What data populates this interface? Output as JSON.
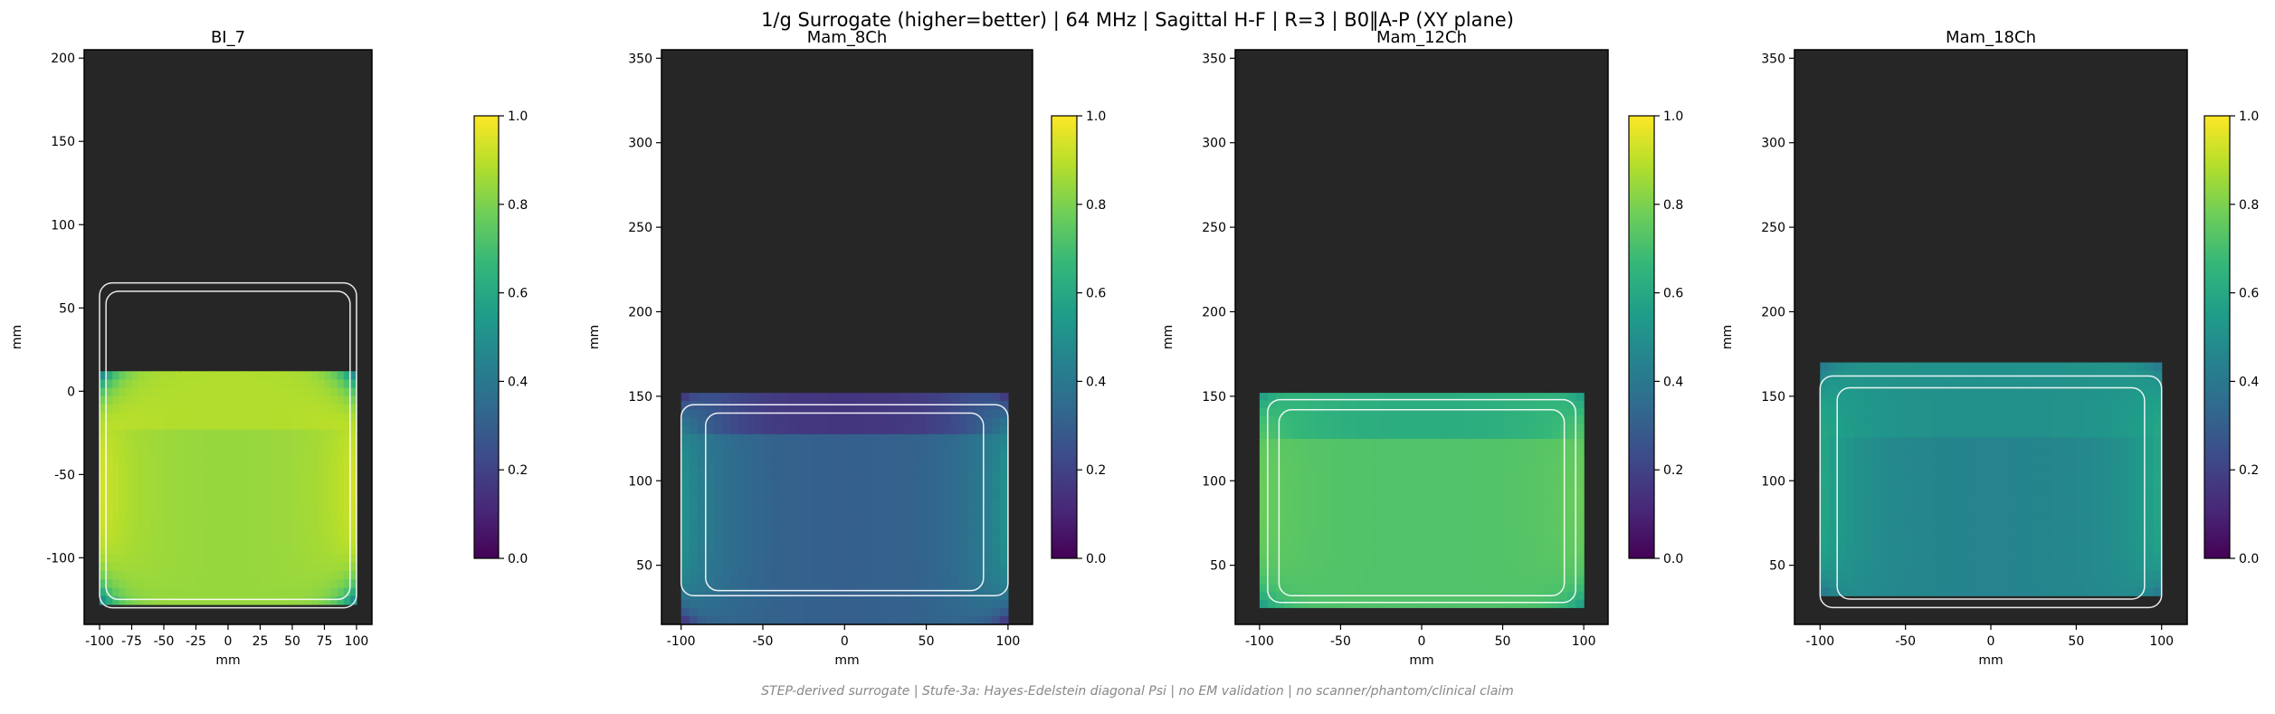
{
  "suptitle": "1/g Surrogate (higher=better) | 64 MHz | Sagittal H-F | R=3 | B0‖A-P (XY plane)",
  "footnote": "STEP-derived surrogate | Stufe-3a: Hayes-Edelstein diagonal Psi | no EM validation | no scanner/phantom/clinical claim",
  "colors": {
    "background": "#262626",
    "outline": "#ffffff",
    "colormap": [
      "#440154",
      "#482878",
      "#3e4989",
      "#31688e",
      "#26828e",
      "#1f9e89",
      "#35b779",
      "#6ece58",
      "#b5de2b",
      "#fde725"
    ]
  },
  "chart_data": [
    {
      "type": "heatmap",
      "title": "BI_7",
      "xlabel": "mm",
      "ylabel": "mm",
      "xlim": [
        -112,
        112
      ],
      "ylim": [
        -140,
        205
      ],
      "xticks": [
        -100,
        -75,
        -50,
        -25,
        0,
        25,
        50,
        75,
        100
      ],
      "yticks": [
        -100,
        -50,
        0,
        50,
        100,
        150,
        200
      ],
      "colorbar": {
        "ticks": [
          "0.0",
          "0.2",
          "0.4",
          "0.6",
          "0.8",
          "1.0"
        ],
        "range": [
          0,
          1
        ]
      },
      "field": {
        "x": [
          -100,
          100
        ],
        "y": [
          -128,
          12
        ],
        "split_y": -25,
        "base": 0.84,
        "base_upper": 0.88,
        "hot_edge": 0.96,
        "corner_min": 0.32
      },
      "coils": [
        {
          "x": [
            -100,
            100
          ],
          "y": [
            -130,
            65
          ]
        },
        {
          "x": [
            -95,
            95
          ],
          "y": [
            -125,
            60
          ]
        }
      ]
    },
    {
      "type": "heatmap",
      "title": "Mam_8Ch",
      "xlabel": "mm",
      "ylabel": "mm",
      "xlim": [
        -112,
        115
      ],
      "ylim": [
        15,
        355
      ],
      "xticks": [
        -100,
        -50,
        0,
        50,
        100
      ],
      "yticks": [
        50,
        100,
        150,
        200,
        250,
        300,
        350
      ],
      "colorbar": {
        "ticks": [
          "0.0",
          "0.2",
          "0.4",
          "0.6",
          "0.8",
          "1.0"
        ],
        "range": [
          0,
          1
        ]
      },
      "field": {
        "x": [
          -100,
          100
        ],
        "y": [
          15,
          152
        ],
        "split_y": 127,
        "base": 0.3,
        "base_upper": 0.15,
        "hot_edge": 0.55,
        "corner_min": 0.05
      },
      "coils": [
        {
          "x": [
            -100,
            100
          ],
          "y": [
            32,
            145
          ]
        },
        {
          "x": [
            -85,
            85
          ],
          "y": [
            35,
            140
          ]
        }
      ]
    },
    {
      "type": "heatmap",
      "title": "Mam_12Ch",
      "xlabel": "mm",
      "ylabel": "mm",
      "xlim": [
        -115,
        115
      ],
      "ylim": [
        15,
        355
      ],
      "xticks": [
        -100,
        -50,
        0,
        50,
        100
      ],
      "yticks": [
        50,
        100,
        150,
        200,
        250,
        300,
        350
      ],
      "colorbar": {
        "ticks": [
          "0.0",
          "0.2",
          "0.4",
          "0.6",
          "0.8",
          "1.0"
        ],
        "range": [
          0,
          1
        ]
      },
      "field": {
        "x": [
          -100,
          100
        ],
        "y": [
          25,
          152
        ],
        "split_y": 125,
        "base": 0.72,
        "base_upper": 0.62,
        "hot_edge": 0.78,
        "corner_min": 0.5
      },
      "coils": [
        {
          "x": [
            -95,
            95
          ],
          "y": [
            28,
            148
          ]
        },
        {
          "x": [
            -88,
            88
          ],
          "y": [
            32,
            142
          ]
        }
      ]
    },
    {
      "type": "heatmap",
      "title": "Mam_18Ch",
      "xlabel": "mm",
      "ylabel": "mm",
      "xlim": [
        -115,
        115
      ],
      "ylim": [
        15,
        355
      ],
      "xticks": [
        -100,
        -50,
        0,
        50,
        100
      ],
      "yticks": [
        50,
        100,
        150,
        200,
        250,
        300,
        350
      ],
      "colorbar": {
        "ticks": [
          "0.0",
          "0.2",
          "0.4",
          "0.6",
          "0.8",
          "1.0"
        ],
        "range": [
          0,
          1
        ]
      },
      "field": {
        "x": [
          -100,
          100
        ],
        "y": [
          32,
          170
        ],
        "split_y": 125,
        "base": 0.45,
        "base_upper": 0.5,
        "hot_edge": 0.62,
        "corner_min": 0.35
      },
      "coils": [
        {
          "x": [
            -100,
            100
          ],
          "y": [
            25,
            162
          ]
        },
        {
          "x": [
            -90,
            90
          ],
          "y": [
            30,
            155
          ]
        }
      ]
    }
  ]
}
